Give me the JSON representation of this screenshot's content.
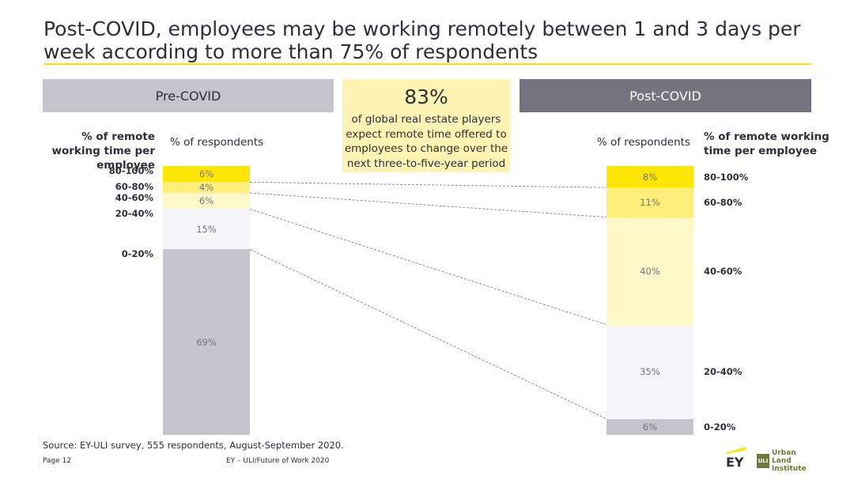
{
  "title": "Post-COVID, employees may be working remotely between 1 and 3 days per week according to more than 75% of respondents",
  "headers": {
    "pre": "Pre-COVID",
    "post": "Post-COVID"
  },
  "callout": {
    "value": "83%",
    "text": "of global real estate players expect remote time offered to employees to change over the next three-to-five-year period"
  },
  "axis_titles": {
    "left": "% of remote working time per employee",
    "right": "% of remote working time per employee",
    "respondents_left": "% of respondents",
    "respondents_right": "% of respondents"
  },
  "colors": {
    "0-20%": "#c5c5ce",
    "20-40%": "#f6f6fa",
    "40-60%": "#fff8c8",
    "60-80%": "#ffef7a",
    "80-100%": "#ffe600",
    "connector": "#747480"
  },
  "chart_data": {
    "type": "bar",
    "stacked": true,
    "normalized": true,
    "categories": [
      "0-20%",
      "20-40%",
      "40-60%",
      "60-80%",
      "80-100%"
    ],
    "series": [
      {
        "name": "Pre-COVID",
        "values": [
          69,
          15,
          6,
          4,
          6
        ],
        "labels": [
          "69%",
          "15%",
          "6%",
          "4%",
          "6%"
        ]
      },
      {
        "name": "Post-COVID",
        "values": [
          6,
          35,
          40,
          11,
          8
        ],
        "labels": [
          "6%",
          "35%",
          "40%",
          "11%",
          "8%"
        ]
      }
    ]
  },
  "source": "Source: EY-ULI survey, 555 respondents, August-September 2020.",
  "footer": {
    "page": "Page 12",
    "publication": "EY – ULI/Future of Work 2020",
    "ey_logo": "EY",
    "uli_logo": "Urban Land Institute",
    "uli_mark": "ULI"
  }
}
